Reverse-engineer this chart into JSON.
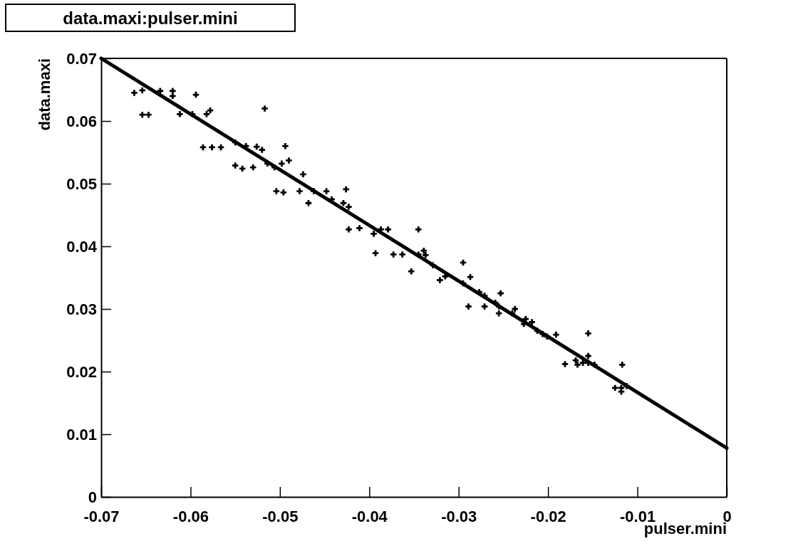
{
  "chart_data": {
    "type": "scatter",
    "title": "data.maxi:pulser.mini",
    "xlabel": "pulser.mini",
    "ylabel": "data.maxi",
    "marker": "cross",
    "grid": false,
    "xlim": [
      -0.07,
      0
    ],
    "ylim": [
      0,
      0.07
    ],
    "xticks": [
      -0.07,
      -0.06,
      -0.05,
      -0.04,
      -0.03,
      -0.02,
      -0.01,
      0
    ],
    "yticks": [
      0,
      0.01,
      0.02,
      0.03,
      0.04,
      0.05,
      0.06,
      0.07
    ],
    "series": [
      {
        "color": "#000000",
        "x": [
          -0.0663,
          -0.0654,
          -0.0654,
          -0.0647,
          -0.0634,
          -0.062,
          -0.062,
          -0.0594,
          -0.0612,
          -0.0598,
          -0.0582,
          -0.0578,
          -0.0586,
          -0.0576,
          -0.0566,
          -0.0517,
          -0.055,
          -0.0538,
          -0.0526,
          -0.052,
          -0.0542,
          -0.055,
          -0.053,
          -0.0514,
          -0.0506,
          -0.0498,
          -0.049,
          -0.0494,
          -0.0504,
          -0.0496,
          -0.0474,
          -0.0478,
          -0.0462,
          -0.0448,
          -0.0468,
          -0.0442,
          -0.0429,
          -0.0426,
          -0.0423,
          -0.0423,
          -0.0411,
          -0.0395,
          -0.0387,
          -0.0379,
          -0.0393,
          -0.0373,
          -0.0363,
          -0.0345,
          -0.0339,
          -0.0345,
          -0.0337,
          -0.0329,
          -0.0321,
          -0.0315,
          -0.0295,
          -0.0295,
          -0.0287,
          -0.0277,
          -0.0271,
          -0.0289,
          -0.0271,
          -0.0259,
          -0.0253,
          -0.0255,
          -0.0255,
          -0.024,
          -0.0237,
          -0.0225,
          -0.0218,
          -0.0227,
          -0.0206,
          -0.0201,
          -0.0212,
          -0.0191,
          -0.0181,
          -0.0167,
          -0.0161,
          -0.0155,
          -0.0155,
          -0.0148,
          -0.0169,
          -0.0125,
          -0.0118,
          -0.0112,
          -0.0117,
          -0.0118,
          -0.0155,
          -0.0353
        ],
        "values": [
          0.0645,
          0.0649,
          0.061,
          0.061,
          0.0648,
          0.0648,
          0.064,
          0.0642,
          0.0611,
          0.0611,
          0.0611,
          0.0617,
          0.0558,
          0.0558,
          0.0558,
          0.062,
          0.0566,
          0.056,
          0.0559,
          0.0554,
          0.0524,
          0.0529,
          0.0526,
          0.0532,
          0.0526,
          0.0532,
          0.0537,
          0.056,
          0.0488,
          0.0486,
          0.0515,
          0.0488,
          0.0488,
          0.0488,
          0.0469,
          0.0475,
          0.0469,
          0.0491,
          0.0463,
          0.0427,
          0.0429,
          0.042,
          0.0427,
          0.0427,
          0.0389,
          0.0387,
          0.0387,
          0.0387,
          0.0393,
          0.0427,
          0.0386,
          0.037,
          0.0346,
          0.0352,
          0.0374,
          0.0341,
          0.0351,
          0.0327,
          0.0321,
          0.0304,
          0.0304,
          0.031,
          0.0325,
          0.0304,
          0.0293,
          0.0293,
          0.03,
          0.0284,
          0.0279,
          0.0276,
          0.026,
          0.0256,
          0.0265,
          0.0259,
          0.0212,
          0.0211,
          0.0214,
          0.0214,
          0.0261,
          0.0211,
          0.0218,
          0.0174,
          0.0174,
          0.0177,
          0.0211,
          0.0168,
          0.0225,
          0.036
        ]
      },
      {
        "type": "line",
        "marker": "none",
        "color": "#000000",
        "x": [
          -0.07,
          0
        ],
        "values": [
          0.07,
          0.0078
        ]
      }
    ]
  }
}
